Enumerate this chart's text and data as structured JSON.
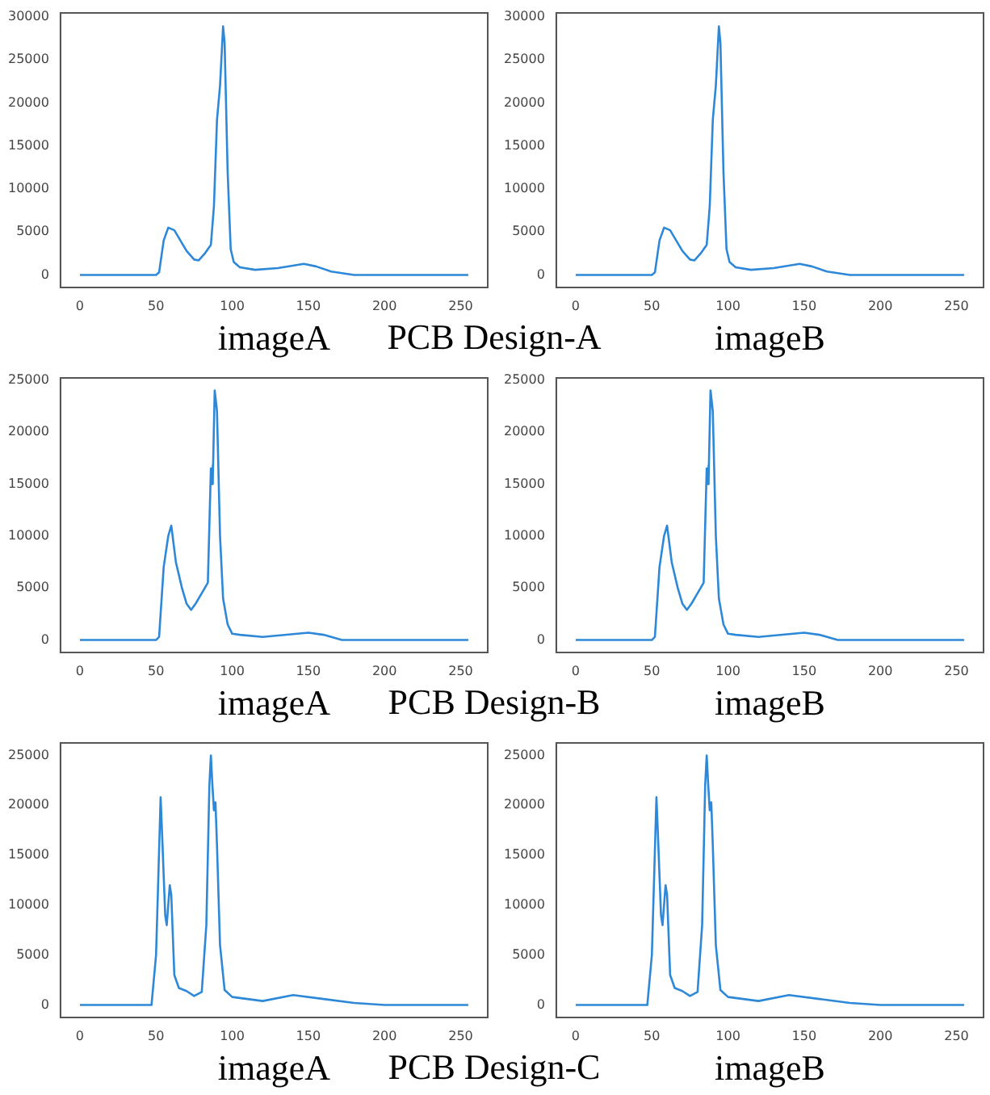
{
  "chart_data": [
    {
      "type": "line",
      "xlabel": "imageA",
      "annotations": [
        "PCB Design-A"
      ],
      "x": [
        0,
        50,
        52,
        55,
        58,
        62,
        66,
        70,
        75,
        78,
        82,
        86,
        88,
        90,
        92,
        94,
        95,
        97,
        99,
        101,
        105,
        115,
        130,
        147,
        155,
        165,
        180,
        200,
        255
      ],
      "series": [
        {
          "color": "#2e88d8",
          "values": [
            0,
            0,
            300,
            4000,
            5500,
            5200,
            4000,
            2800,
            1800,
            1700,
            2500,
            3500,
            8000,
            18000,
            22000,
            28900,
            27000,
            12000,
            3000,
            1500,
            900,
            600,
            800,
            1300,
            1000,
            400,
            0,
            0,
            0
          ]
        }
      ],
      "xlim": [
        -12.75,
        267.75
      ],
      "xticks": [
        0,
        50,
        100,
        150,
        200,
        250
      ],
      "ylim": [
        -1450,
        30450
      ],
      "yticks": [
        0,
        5000,
        10000,
        15000,
        20000,
        25000,
        30000
      ],
      "grid": false,
      "legend": false,
      "marker": "none"
    },
    {
      "type": "line",
      "xlabel": "imageB",
      "x": [
        0,
        50,
        52,
        55,
        58,
        62,
        66,
        70,
        75,
        78,
        82,
        86,
        88,
        90,
        92,
        94,
        95,
        97,
        99,
        101,
        105,
        115,
        130,
        147,
        155,
        165,
        180,
        200,
        255
      ],
      "series": [
        {
          "color": "#2e88d8",
          "values": [
            0,
            0,
            300,
            4000,
            5500,
            5200,
            4000,
            2800,
            1800,
            1700,
            2500,
            3500,
            8000,
            18000,
            22000,
            28900,
            27000,
            12000,
            3000,
            1500,
            900,
            600,
            800,
            1300,
            1000,
            400,
            0,
            0,
            0
          ]
        }
      ],
      "xlim": [
        -12.75,
        267.75
      ],
      "xticks": [
        0,
        50,
        100,
        150,
        200,
        250
      ],
      "ylim": [
        -1450,
        30450
      ],
      "yticks": [
        0,
        5000,
        10000,
        15000,
        20000,
        25000,
        30000
      ],
      "grid": false,
      "legend": false,
      "marker": "none"
    },
    {
      "type": "line",
      "xlabel": "imageA",
      "annotations": [
        "PCB Design-B"
      ],
      "x": [
        0,
        50,
        52,
        55,
        58,
        60,
        63,
        67,
        70,
        73,
        76,
        80,
        84,
        86,
        86.5,
        87,
        87.5,
        88.5,
        90,
        92,
        94,
        97,
        100,
        105,
        120,
        150,
        160,
        172,
        180,
        255
      ],
      "series": [
        {
          "color": "#2e88d8",
          "values": [
            0,
            0,
            300,
            7000,
            10000,
            11000,
            7500,
            5000,
            3500,
            2900,
            3500,
            4500,
            5500,
            16500,
            15000,
            16800,
            15500,
            24000,
            22000,
            10000,
            4000,
            1500,
            600,
            500,
            300,
            700,
            500,
            0,
            0,
            0
          ]
        }
      ],
      "xlim": [
        -12.75,
        267.75
      ],
      "xticks": [
        0,
        50,
        100,
        150,
        200,
        250
      ],
      "ylim": [
        -1200,
        25200
      ],
      "yticks": [
        0,
        5000,
        10000,
        15000,
        20000,
        25000
      ],
      "grid": false,
      "legend": false,
      "marker": "none"
    },
    {
      "type": "line",
      "xlabel": "imageB",
      "x": [
        0,
        50,
        52,
        55,
        58,
        60,
        63,
        67,
        70,
        73,
        76,
        80,
        84,
        86,
        86.5,
        87,
        87.5,
        88.5,
        90,
        92,
        94,
        97,
        100,
        105,
        120,
        150,
        160,
        172,
        180,
        255
      ],
      "series": [
        {
          "color": "#2e88d8",
          "values": [
            0,
            0,
            300,
            7000,
            10000,
            11000,
            7500,
            5000,
            3500,
            2900,
            3500,
            4500,
            5500,
            16500,
            15000,
            16800,
            15500,
            24000,
            22000,
            10000,
            4000,
            1500,
            600,
            500,
            300,
            700,
            500,
            0,
            0,
            0
          ]
        }
      ],
      "xlim": [
        -12.75,
        267.75
      ],
      "xticks": [
        0,
        50,
        100,
        150,
        200,
        250
      ],
      "ylim": [
        -1200,
        25200
      ],
      "yticks": [
        0,
        5000,
        10000,
        15000,
        20000,
        25000
      ],
      "grid": false,
      "legend": false,
      "marker": "none"
    },
    {
      "type": "line",
      "xlabel": "imageA",
      "annotations": [
        "PCB Design-C"
      ],
      "x": [
        0,
        47,
        50,
        53,
        54,
        56,
        57,
        58,
        59,
        60,
        62,
        65,
        70,
        75,
        80,
        83,
        85,
        86,
        87,
        88,
        89,
        90,
        92,
        95,
        100,
        110,
        120,
        140,
        160,
        180,
        200,
        255
      ],
      "series": [
        {
          "color": "#2e88d8",
          "values": [
            0,
            0,
            5000,
            20800,
            17000,
            9000,
            8000,
            10000,
            12000,
            11000,
            3000,
            1700,
            1400,
            900,
            1300,
            8000,
            22000,
            25000,
            22000,
            19500,
            20300,
            16000,
            6000,
            1500,
            800,
            600,
            400,
            1000,
            600,
            200,
            0,
            0
          ]
        }
      ],
      "xlim": [
        -12.75,
        267.75
      ],
      "xticks": [
        0,
        50,
        100,
        150,
        200,
        250
      ],
      "ylim": [
        -1250,
        26250
      ],
      "yticks": [
        0,
        5000,
        10000,
        15000,
        20000,
        25000
      ],
      "grid": false,
      "legend": false,
      "marker": "none"
    },
    {
      "type": "line",
      "xlabel": "imageB",
      "x": [
        0,
        47,
        50,
        53,
        54,
        56,
        57,
        58,
        59,
        60,
        62,
        65,
        70,
        75,
        80,
        83,
        85,
        86,
        87,
        88,
        89,
        90,
        92,
        95,
        100,
        110,
        120,
        140,
        160,
        180,
        200,
        255
      ],
      "series": [
        {
          "color": "#2e88d8",
          "values": [
            0,
            0,
            5000,
            20800,
            17000,
            9000,
            8000,
            10000,
            12000,
            11000,
            3000,
            1700,
            1400,
            900,
            1300,
            8000,
            22000,
            25000,
            22000,
            19500,
            20300,
            16000,
            6000,
            1500,
            800,
            600,
            400,
            1000,
            600,
            200,
            0,
            0
          ]
        }
      ],
      "xlim": [
        -12.75,
        267.75
      ],
      "xticks": [
        0,
        50,
        100,
        150,
        200,
        250
      ],
      "ylim": [
        -1250,
        26250
      ],
      "yticks": [
        0,
        5000,
        10000,
        15000,
        20000,
        25000
      ],
      "grid": false,
      "legend": false,
      "marker": "none"
    }
  ]
}
